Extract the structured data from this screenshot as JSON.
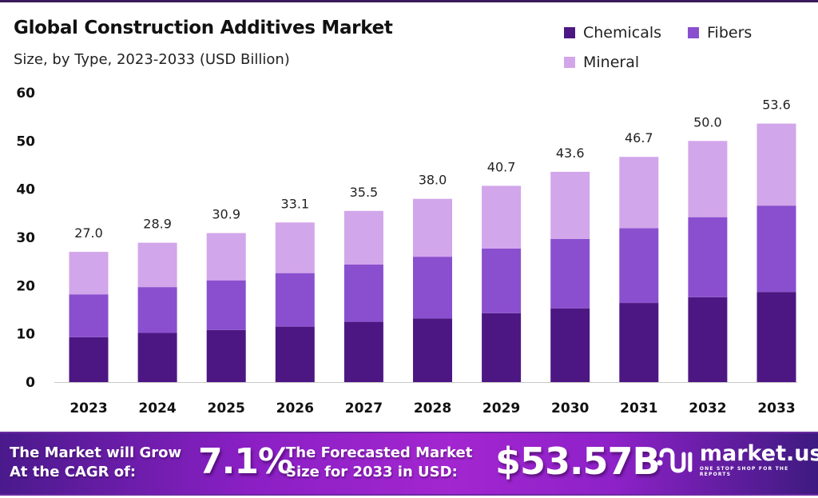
{
  "header": {
    "title": "Global Construction Additives Market",
    "subtitle": "Size, by Type, 2023-2033 (USD Billion)"
  },
  "legend": [
    {
      "label": "Chemicals",
      "color": "#4d1783"
    },
    {
      "label": "Fibers",
      "color": "#8a4fce"
    },
    {
      "label": "Mineral",
      "color": "#d2a6ea"
    }
  ],
  "chart_data": {
    "type": "bar",
    "stacked": true,
    "title": "Global Construction Additives Market",
    "subtitle": "Size, by Type, 2023-2033 (USD Billion)",
    "xlabel": "",
    "ylabel": "",
    "ylim": [
      0,
      60
    ],
    "yticks": [
      0,
      10,
      20,
      30,
      40,
      50,
      60
    ],
    "grid": false,
    "legend_position": "top-right",
    "categories": [
      "2023",
      "2024",
      "2025",
      "2026",
      "2027",
      "2028",
      "2029",
      "2030",
      "2031",
      "2032",
      "2033"
    ],
    "series": [
      {
        "name": "Chemicals",
        "color": "#4d1783",
        "values": [
          9.3,
          10.2,
          10.8,
          11.5,
          12.5,
          13.2,
          14.3,
          15.3,
          16.4,
          17.6,
          18.7
        ]
      },
      {
        "name": "Fibers",
        "color": "#8a4fce",
        "values": [
          8.9,
          9.5,
          10.3,
          11.1,
          11.9,
          12.8,
          13.4,
          14.4,
          15.5,
          16.6,
          17.9
        ]
      },
      {
        "name": "Mineral",
        "color": "#d2a6ea",
        "values": [
          8.8,
          9.2,
          9.8,
          10.5,
          11.1,
          12.0,
          13.0,
          13.9,
          14.8,
          15.8,
          17.0
        ]
      }
    ],
    "totals": [
      27.0,
      28.9,
      30.9,
      33.1,
      35.5,
      38.0,
      40.7,
      43.6,
      46.7,
      50.0,
      53.6
    ],
    "total_labels": [
      "27.0",
      "28.9",
      "30.9",
      "33.1",
      "35.5",
      "38.0",
      "40.7",
      "43.6",
      "46.7",
      "50.0",
      "53.6"
    ]
  },
  "banner": {
    "cagr_text_line1": "The Market will Grow",
    "cagr_text_line2": "At the CAGR of:",
    "cagr_value": "7.1%",
    "forecast_text_line1": "The Forecasted Market",
    "forecast_text_line2": "Size for 2033 in USD:",
    "forecast_value": "$53.57B",
    "brand_name": "market.us",
    "brand_tagline": "ONE STOP SHOP FOR THE REPORTS"
  }
}
